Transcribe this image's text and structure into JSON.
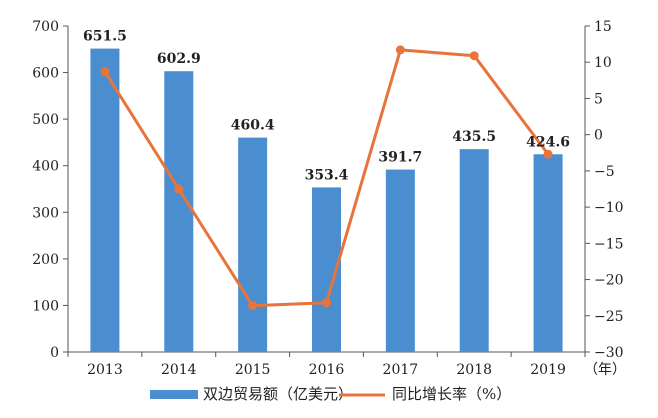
{
  "chart_data": {
    "type": "bar",
    "categories": [
      "2013",
      "2014",
      "2015",
      "2016",
      "2017",
      "2018",
      "2019"
    ],
    "x_unit": "（年）",
    "series": [
      {
        "name": "双边贸易额（亿美元）",
        "type": "bar",
        "axis": "left",
        "color": "#4a8ed0",
        "values": [
          651.5,
          602.9,
          460.4,
          353.4,
          391.7,
          435.5,
          424.6
        ],
        "data_labels": [
          "651.5",
          "602.9",
          "460.4",
          "353.4",
          "391.7",
          "435.5",
          "424.6"
        ]
      },
      {
        "name": "同比增长率（%）",
        "type": "line",
        "axis": "right",
        "color": "#e8743b",
        "values": [
          8.7,
          -7.5,
          -23.6,
          -23.2,
          11.7,
          10.9,
          -2.7
        ]
      }
    ],
    "y_left": {
      "min": 0,
      "max": 700,
      "ticks": [
        "0",
        "100",
        "200",
        "300",
        "400",
        "500",
        "600",
        "700"
      ]
    },
    "y_right": {
      "min": -30,
      "max": 15,
      "ticks": [
        "−30",
        "−25",
        "−20",
        "−15",
        "−10",
        "−5",
        "0",
        "5",
        "10",
        "15"
      ]
    },
    "grid": false,
    "legend_position": "bottom"
  }
}
